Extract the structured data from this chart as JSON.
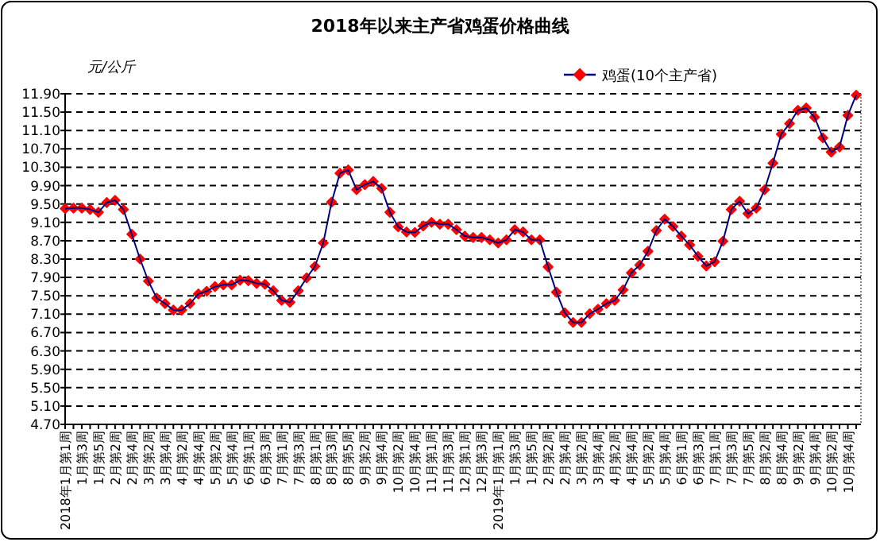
{
  "chart_data": {
    "type": "line",
    "title": "2018年以来主产省鸡蛋价格曲线",
    "ylabel": "元/公斤",
    "categories": [
      "2018年1月第1周",
      null,
      "1月第3周",
      null,
      "1月第5周",
      null,
      "2月第2周",
      null,
      "2月第4周",
      null,
      "3月第2周",
      null,
      "3月第4周",
      null,
      "4月第2周",
      null,
      "4月第4周",
      null,
      "5月第2周",
      null,
      "5月第4周",
      null,
      "6月第1周",
      null,
      "6月第3周",
      null,
      "7月第1周",
      null,
      "7月第3周",
      null,
      "8月第1周",
      null,
      "8月第3周",
      null,
      "8月第5周",
      null,
      "9月第2周",
      null,
      "9月第4周",
      null,
      "10月第2周",
      null,
      "10月第4周",
      null,
      "11月第1周",
      null,
      "11月第3周",
      null,
      "12月第1周",
      null,
      "12月第3周",
      null,
      "2019年1月第1周",
      null,
      "1月第3周",
      null,
      "1月第5周",
      null,
      "2月第2周",
      null,
      "2月第4周",
      null,
      "3月第2周",
      null,
      "3月第4周",
      null,
      "4月第2周",
      null,
      "4月第4周",
      null,
      "5月第2周",
      null,
      "5月第4周",
      null,
      "6月第1周",
      null,
      "6月第3周",
      null,
      "7月第1周",
      null,
      "7月第3周",
      null,
      "7月第5周",
      null,
      "8月第2周",
      null,
      "8月第4周",
      null,
      "9月第2周",
      null,
      "9月第4周",
      null,
      "10月第2周",
      null,
      "10月第4周",
      null
    ],
    "series": [
      {
        "name": "鸡蛋(10个主产省)",
        "color": "#ff0000",
        "values": [
          9.4,
          9.41,
          9.41,
          9.38,
          9.32,
          9.53,
          9.58,
          9.38,
          8.84,
          8.3,
          7.82,
          7.45,
          7.33,
          7.19,
          7.19,
          7.33,
          7.54,
          7.6,
          7.7,
          7.74,
          7.74,
          7.84,
          7.83,
          7.77,
          7.75,
          7.61,
          7.4,
          7.36,
          7.61,
          7.89,
          8.14,
          8.65,
          9.54,
          10.17,
          10.24,
          9.81,
          9.92,
          9.99,
          9.84,
          9.32,
          9.0,
          8.89,
          8.88,
          9.02,
          9.1,
          9.06,
          9.06,
          8.94,
          8.8,
          8.77,
          8.77,
          8.72,
          8.65,
          8.72,
          8.94,
          8.89,
          8.72,
          8.72,
          8.13,
          7.58,
          7.13,
          6.92,
          6.92,
          7.11,
          7.21,
          7.33,
          7.4,
          7.63,
          8.0,
          8.17,
          8.47,
          8.92,
          9.17,
          9.01,
          8.8,
          8.61,
          8.36,
          8.15,
          8.24,
          8.69,
          9.38,
          9.56,
          9.29,
          9.41,
          9.81,
          10.39,
          11.02,
          11.25,
          11.54,
          11.59,
          11.39,
          10.94,
          10.63,
          10.74,
          11.43,
          11.87
        ]
      }
    ],
    "ylim": [
      4.7,
      11.9
    ],
    "yticks": [
      {
        "value": 4.7,
        "label": "4.70"
      },
      {
        "value": 5.1,
        "label": "5.10"
      },
      {
        "value": 5.5,
        "label": "5.50"
      },
      {
        "value": 5.9,
        "label": "5.90"
      },
      {
        "value": 6.3,
        "label": "6.30"
      },
      {
        "value": 6.7,
        "label": "6.70"
      },
      {
        "value": 7.1,
        "label": "7.10"
      },
      {
        "value": 7.5,
        "label": "7.50"
      },
      {
        "value": 7.9,
        "label": "7.90"
      },
      {
        "value": 8.3,
        "label": "8.30"
      },
      {
        "value": 8.7,
        "label": "8.70"
      },
      {
        "value": 9.1,
        "label": "9.10"
      },
      {
        "value": 9.5,
        "label": "9.50"
      },
      {
        "value": 9.9,
        "label": "9.90"
      },
      {
        "value": 10.3,
        "label": "10.30"
      },
      {
        "value": 10.7,
        "label": "10.70"
      },
      {
        "value": 11.1,
        "label": "11.10"
      },
      {
        "value": 11.5,
        "label": "11.50"
      },
      {
        "value": 11.9,
        "label": "11.90"
      }
    ],
    "grid": "y",
    "legend": "top",
    "marker": "diamond",
    "line_style": "solid"
  }
}
